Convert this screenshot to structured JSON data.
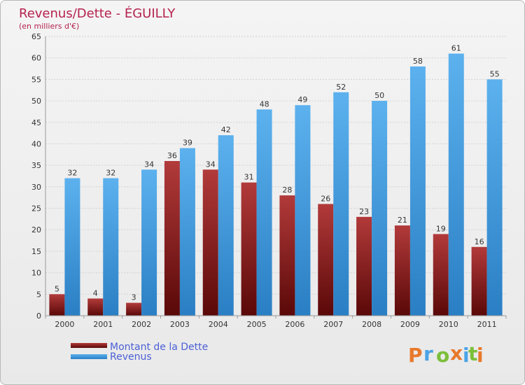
{
  "chart_data": {
    "type": "bar",
    "title": "Revenus/Dette - ÉGUILLY",
    "subtitle": "(en milliers d'€)",
    "categories": [
      "2000",
      "2001",
      "2002",
      "2003",
      "2004",
      "2005",
      "2006",
      "2007",
      "2008",
      "2009",
      "2010",
      "2011"
    ],
    "series": [
      {
        "name": "Montant de la Dette",
        "color": "#7a1a1a",
        "values": [
          5,
          4,
          3,
          36,
          34,
          31,
          28,
          26,
          23,
          21,
          19,
          16
        ]
      },
      {
        "name": "Revenus",
        "color": "#4aa3e6",
        "values": [
          32,
          32,
          34,
          39,
          42,
          48,
          49,
          52,
          50,
          58,
          61,
          55
        ]
      }
    ],
    "ylim": [
      0,
      65
    ],
    "yticks": [
      "0",
      "5",
      "10",
      "15",
      "20",
      "25",
      "30",
      "35",
      "40",
      "45",
      "50",
      "55",
      "60",
      "65"
    ],
    "grid": true,
    "legend_position": "bottom-left"
  },
  "logo": {
    "text": "Proxiti",
    "colors": [
      "#e8792b",
      "#4aa3e6",
      "#7bbf3a",
      "#e8792b",
      "#4aa3e6",
      "#7bbf3a",
      "#e8792b"
    ]
  }
}
